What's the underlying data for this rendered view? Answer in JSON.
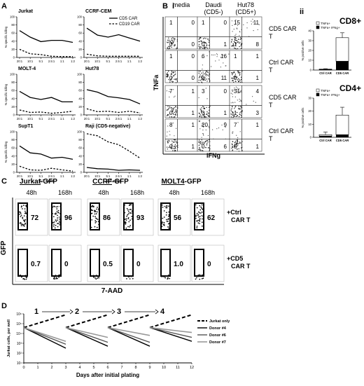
{
  "panels": {
    "A": "A",
    "B": "B",
    "Bi": "i",
    "Bii": "ii",
    "C": "C",
    "D": "D"
  },
  "chart_data": [
    {
      "type": "line",
      "panel": "A",
      "title": "Jurkat",
      "x_ticks": [
        "20:1",
        "10:1",
        "5:1",
        "2.5:1",
        "1:1",
        "1:2"
      ],
      "ylim": [
        0,
        100
      ],
      "y_ticks": [
        "0",
        "20",
        "40",
        "60",
        "80",
        "100"
      ],
      "ylabel": "% specific killing",
      "series": [
        {
          "name": "CD5 CAR",
          "style": "solid",
          "values": [
            66,
            50,
            39,
            42,
            42,
            37
          ]
        },
        {
          "name": "CD19 CAR",
          "style": "dashed",
          "values": [
            20,
            9,
            7,
            3,
            2,
            2
          ]
        }
      ]
    },
    {
      "type": "line",
      "panel": "A",
      "title": "CCRF-CEM",
      "x_ticks": [
        "20:1",
        "10:1",
        "5:1",
        "2.5:1",
        "1:1",
        "1:2"
      ],
      "ylim": [
        0,
        100
      ],
      "y_ticks": [
        "0",
        "20",
        "40",
        "60",
        "80",
        "100"
      ],
      "legend": [
        "CD5 CAR",
        "CD19 CAR"
      ],
      "legend_position": "top-right",
      "series": [
        {
          "name": "CD5 CAR",
          "style": "solid",
          "values": [
            72,
            55,
            50,
            56,
            48,
            40
          ]
        },
        {
          "name": "CD19 CAR",
          "style": "dashed",
          "values": [
            8,
            4,
            3,
            3,
            3,
            3
          ]
        }
      ]
    },
    {
      "type": "line",
      "panel": "A",
      "title": "MOLT-4",
      "x_ticks": [
        "20:1",
        "10:1",
        "5:1",
        "2.5:1",
        "1:1",
        "1:2"
      ],
      "ylim": [
        0,
        100
      ],
      "y_ticks": [
        "0",
        "20",
        "40",
        "60",
        "80",
        "100"
      ],
      "ylabel": "% specific killing",
      "series": [
        {
          "name": "CD5 CAR",
          "style": "solid",
          "values": [
            58,
            43,
            38,
            43,
            32,
            32
          ]
        },
        {
          "name": "CD19 CAR",
          "style": "dashed",
          "values": [
            12,
            6,
            7,
            4,
            6,
            9
          ]
        }
      ]
    },
    {
      "type": "line",
      "panel": "A",
      "title": "Hut78",
      "x_ticks": [
        "20:1",
        "10:1",
        "5:1",
        "2.5:1",
        "1:1",
        "1:2"
      ],
      "ylim": [
        0,
        100
      ],
      "y_ticks": [
        "0",
        "20",
        "40",
        "60",
        "80",
        "100"
      ],
      "series": [
        {
          "name": "CD5 CAR",
          "style": "solid",
          "values": [
            62,
            56,
            45,
            42,
            38,
            27
          ]
        },
        {
          "name": "CD19 CAR",
          "style": "dashed",
          "values": [
            15,
            8,
            9,
            6,
            9,
            5
          ]
        }
      ]
    },
    {
      "type": "line",
      "panel": "A",
      "title": "SupT1",
      "x_ticks": [
        "20:1",
        "10:1",
        "5:1",
        "2.5:1",
        "1:1",
        "1:2"
      ],
      "ylim": [
        0,
        100
      ],
      "y_ticks": [
        "0",
        "20",
        "40",
        "60",
        "80",
        "100"
      ],
      "ylabel": "% specific killing",
      "xlabel": "E:T ratio",
      "series": [
        {
          "name": "CD5 CAR",
          "style": "solid",
          "values": [
            65,
            48,
            45,
            35,
            37,
            32
          ]
        },
        {
          "name": "CD19 CAR",
          "style": "dashed",
          "values": [
            15,
            6,
            5,
            10,
            6,
            3
          ]
        }
      ]
    },
    {
      "type": "line",
      "panel": "A",
      "title": "Raji (CD5-negative)",
      "x_ticks": [
        "20:1",
        "10:1",
        "5:1",
        "2.5:1",
        "1:1",
        "1:2"
      ],
      "ylim": [
        0,
        100
      ],
      "y_ticks": [
        "0",
        "20",
        "40",
        "60",
        "80",
        "100"
      ],
      "xlabel": "E:T ratio",
      "series": [
        {
          "name": "CD5 CAR",
          "style": "solid",
          "values": [
            12,
            9,
            8,
            5,
            6,
            5
          ]
        },
        {
          "name": "CD19 CAR",
          "style": "dashed",
          "values": [
            95,
            90,
            75,
            68,
            52,
            35
          ]
        }
      ]
    },
    {
      "type": "heatmap",
      "panel": "B i",
      "title": "Flow cytometry quadrants",
      "columns": [
        "media",
        "Daudi (CD5-)",
        "Hut78 (CD5+)"
      ],
      "xlabel": "IFNg",
      "ylabel": "TNFa",
      "rows": [
        {
          "label": "CD5 CAR T",
          "quadrants": [
            [
              1,
              0,
              0,
              0
            ],
            [
              1,
              0,
              0,
              1
            ],
            [
              15,
              11,
              1,
              8
            ]
          ]
        },
        {
          "label": "Ctrl CAR T",
          "quadrants": [
            [
              1,
              0,
              0,
              0
            ],
            [
              6,
              16,
              0,
              11
            ],
            [
              1,
              1,
              0,
              1
            ]
          ]
        },
        {
          "label": "CD5 CAR T",
          "quadrants": [
            [
              7,
              1,
              0,
              1
            ],
            [
              3,
              0,
              0,
              1
            ],
            [
              31,
              4,
              1,
              3
            ]
          ]
        },
        {
          "label": "Ctrl CAR T",
          "quadrants": [
            [
              8,
              1,
              0,
              1
            ],
            [
              20,
              9,
              0,
              6
            ],
            [
              7,
              1,
              0,
              1
            ]
          ]
        }
      ]
    },
    {
      "type": "bar",
      "panel": "B ii",
      "title": "CD8+",
      "categories": [
        "Ctrl CAR",
        "CD5 CAR"
      ],
      "ylabel": "% positive cells",
      "ylim": [
        0,
        40
      ],
      "y_ticks": [
        "0",
        "10",
        "20",
        "30",
        "40"
      ],
      "legend": [
        "TNFa+",
        "TNFa+ IFNg+"
      ],
      "stacked": true,
      "series": [
        {
          "name": "TNFa+ IFNg+",
          "values": [
            0.5,
            9
          ]
        },
        {
          "name": "TNFa+",
          "values": [
            0.5,
            24
          ]
        }
      ],
      "error": [
        0.4,
        5
      ]
    },
    {
      "type": "bar",
      "panel": "B ii",
      "title": "CD4+",
      "categories": [
        "Ctrl CAR",
        "CD5 CAR"
      ],
      "ylabel": "% positive cells",
      "ylim": [
        0,
        30
      ],
      "y_ticks": [
        "0",
        "10",
        "20",
        "30"
      ],
      "legend": [
        "TNFa+",
        "TNFa+ IFNg+"
      ],
      "stacked": true,
      "series": [
        {
          "name": "TNFa+ IFNg+",
          "values": [
            1,
            2
          ]
        },
        {
          "name": "TNFa+",
          "values": [
            1,
            15
          ]
        }
      ],
      "error": [
        2,
        6
      ]
    },
    {
      "type": "table",
      "panel": "C",
      "title": "GFP vs 7-AAD gated percentages",
      "xlabel": "7-AAD",
      "ylabel": "GFP",
      "groups": [
        {
          "prefix": "Jurkat",
          "suffix": "-GFP"
        },
        {
          "prefix": "CCRF",
          "suffix": "-GFP"
        },
        {
          "prefix": "MOLT4",
          "suffix": "-GFP"
        }
      ],
      "timepoints": [
        "48h",
        "168h",
        "48h",
        "168h",
        "48h",
        "168h"
      ],
      "rows": [
        {
          "label": "+Ctrl CAR T",
          "values": [
            "72",
            "96",
            "86",
            "93",
            "56",
            "62"
          ]
        },
        {
          "label": "+CD5 CAR T",
          "values": [
            "0.7",
            "0",
            "0.5",
            "0",
            "1.0",
            "0"
          ]
        }
      ]
    },
    {
      "type": "line",
      "panel": "D",
      "xlabel": "Days after initial plating",
      "ylabel": "Jurkat cells, per well",
      "x_ticks": [
        "0",
        "1",
        "2",
        "3",
        "4",
        "5",
        "6",
        "7",
        "8",
        "9",
        "10",
        "11",
        "12"
      ],
      "y_ticks": [
        "10¹",
        "10²",
        "10³",
        "10⁴",
        "10⁵",
        "10⁶"
      ],
      "yscale": "log",
      "ylim_log10": [
        1,
        6
      ],
      "round_labels": [
        "1",
        "2",
        "3",
        "4"
      ],
      "legend": [
        "Jurkat only",
        "Donor #4",
        "Donor #6",
        "Donor #7"
      ],
      "segments": [
        {
          "x": [
            0,
            3
          ],
          "Jurkat only": [
            4.6,
            5.9
          ],
          "Donor #4": [
            4.6,
            2.5
          ],
          "Donor #6": [
            4.6,
            2.9
          ],
          "Donor #7": [
            4.6,
            3.2
          ]
        },
        {
          "x": [
            3,
            6
          ],
          "Jurkat only": [
            4.6,
            5.9
          ],
          "Donor #4": [
            4.6,
            2.7
          ],
          "Donor #6": [
            4.6,
            3.1
          ],
          "Donor #7": [
            4.6,
            3.6
          ]
        },
        {
          "x": [
            6,
            9
          ],
          "Jurkat only": [
            4.6,
            5.9
          ],
          "Donor #4": [
            4.6,
            2.7
          ],
          "Donor #6": [
            4.6,
            3.1
          ],
          "Donor #7": [
            4.6,
            3.8
          ]
        },
        {
          "x": [
            9,
            12
          ],
          "Jurkat only": [
            4.6,
            5.9
          ],
          "Donor #4": [
            4.6,
            3.2
          ],
          "Donor #6": [
            4.6,
            3.6
          ],
          "Donor #7": [
            4.6,
            4.1
          ]
        }
      ]
    }
  ]
}
